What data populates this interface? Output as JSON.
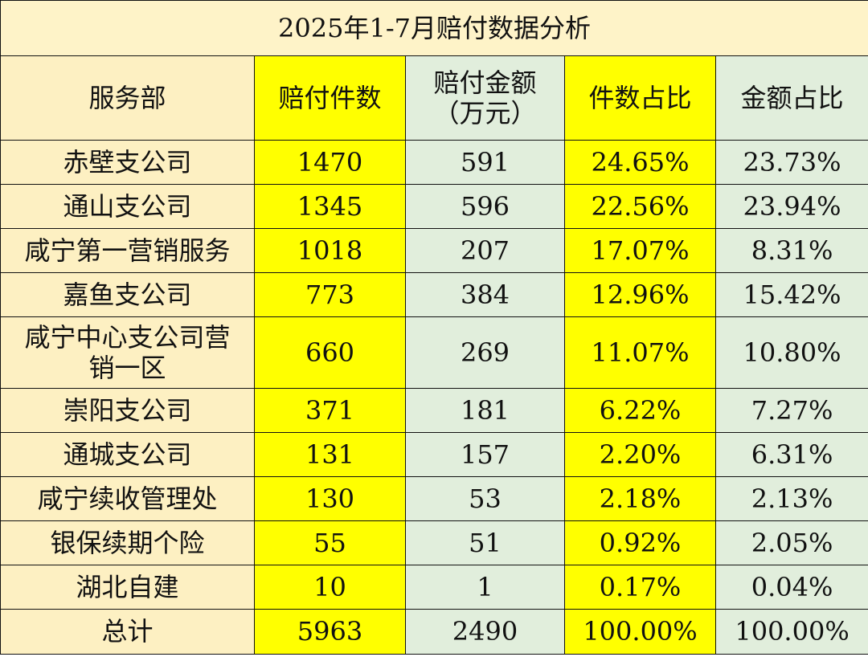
{
  "title": "2025年1-7月赔付数据分析",
  "headers": {
    "dept": "服务部",
    "count": "赔付件数",
    "amount": "赔付金额\n（万元）",
    "count_ratio": "件数占比",
    "amount_ratio": "金额占比"
  },
  "rows": [
    {
      "dept": "赤壁支公司",
      "count": "1470",
      "amount": "591",
      "count_ratio": "24.65%",
      "amount_ratio": "23.73%"
    },
    {
      "dept": "通山支公司",
      "count": "1345",
      "amount": "596",
      "count_ratio": "22.56%",
      "amount_ratio": "23.94%"
    },
    {
      "dept": "咸宁第一营销服务",
      "count": "1018",
      "amount": "207",
      "count_ratio": "17.07%",
      "amount_ratio": "8.31%"
    },
    {
      "dept": "嘉鱼支公司",
      "count": "773",
      "amount": "384",
      "count_ratio": "12.96%",
      "amount_ratio": "15.42%"
    },
    {
      "dept": "咸宁中心支公司营\n销一区",
      "count": "660",
      "amount": "269",
      "count_ratio": "11.07%",
      "amount_ratio": "10.80%"
    },
    {
      "dept": "崇阳支公司",
      "count": "371",
      "amount": "181",
      "count_ratio": "6.22%",
      "amount_ratio": "7.27%"
    },
    {
      "dept": "通城支公司",
      "count": "131",
      "amount": "157",
      "count_ratio": "2.20%",
      "amount_ratio": "6.31%"
    },
    {
      "dept": "咸宁续收管理处",
      "count": "130",
      "amount": "53",
      "count_ratio": "2.18%",
      "amount_ratio": "2.13%"
    },
    {
      "dept": "银保续期个险",
      "count": "55",
      "amount": "51",
      "count_ratio": "0.92%",
      "amount_ratio": "2.05%"
    },
    {
      "dept": "湖北自建",
      "count": "10",
      "amount": "1",
      "count_ratio": "0.17%",
      "amount_ratio": "0.04%"
    }
  ],
  "total": {
    "dept": "总计",
    "count": "5963",
    "amount": "2490",
    "count_ratio": "100.00%",
    "amount_ratio": "100.00%"
  },
  "colors": {
    "title_bg": "#fef3c8",
    "name_bg": "#fdf0c2",
    "yellow": "#ffff00",
    "mint": "#e1eedc"
  }
}
